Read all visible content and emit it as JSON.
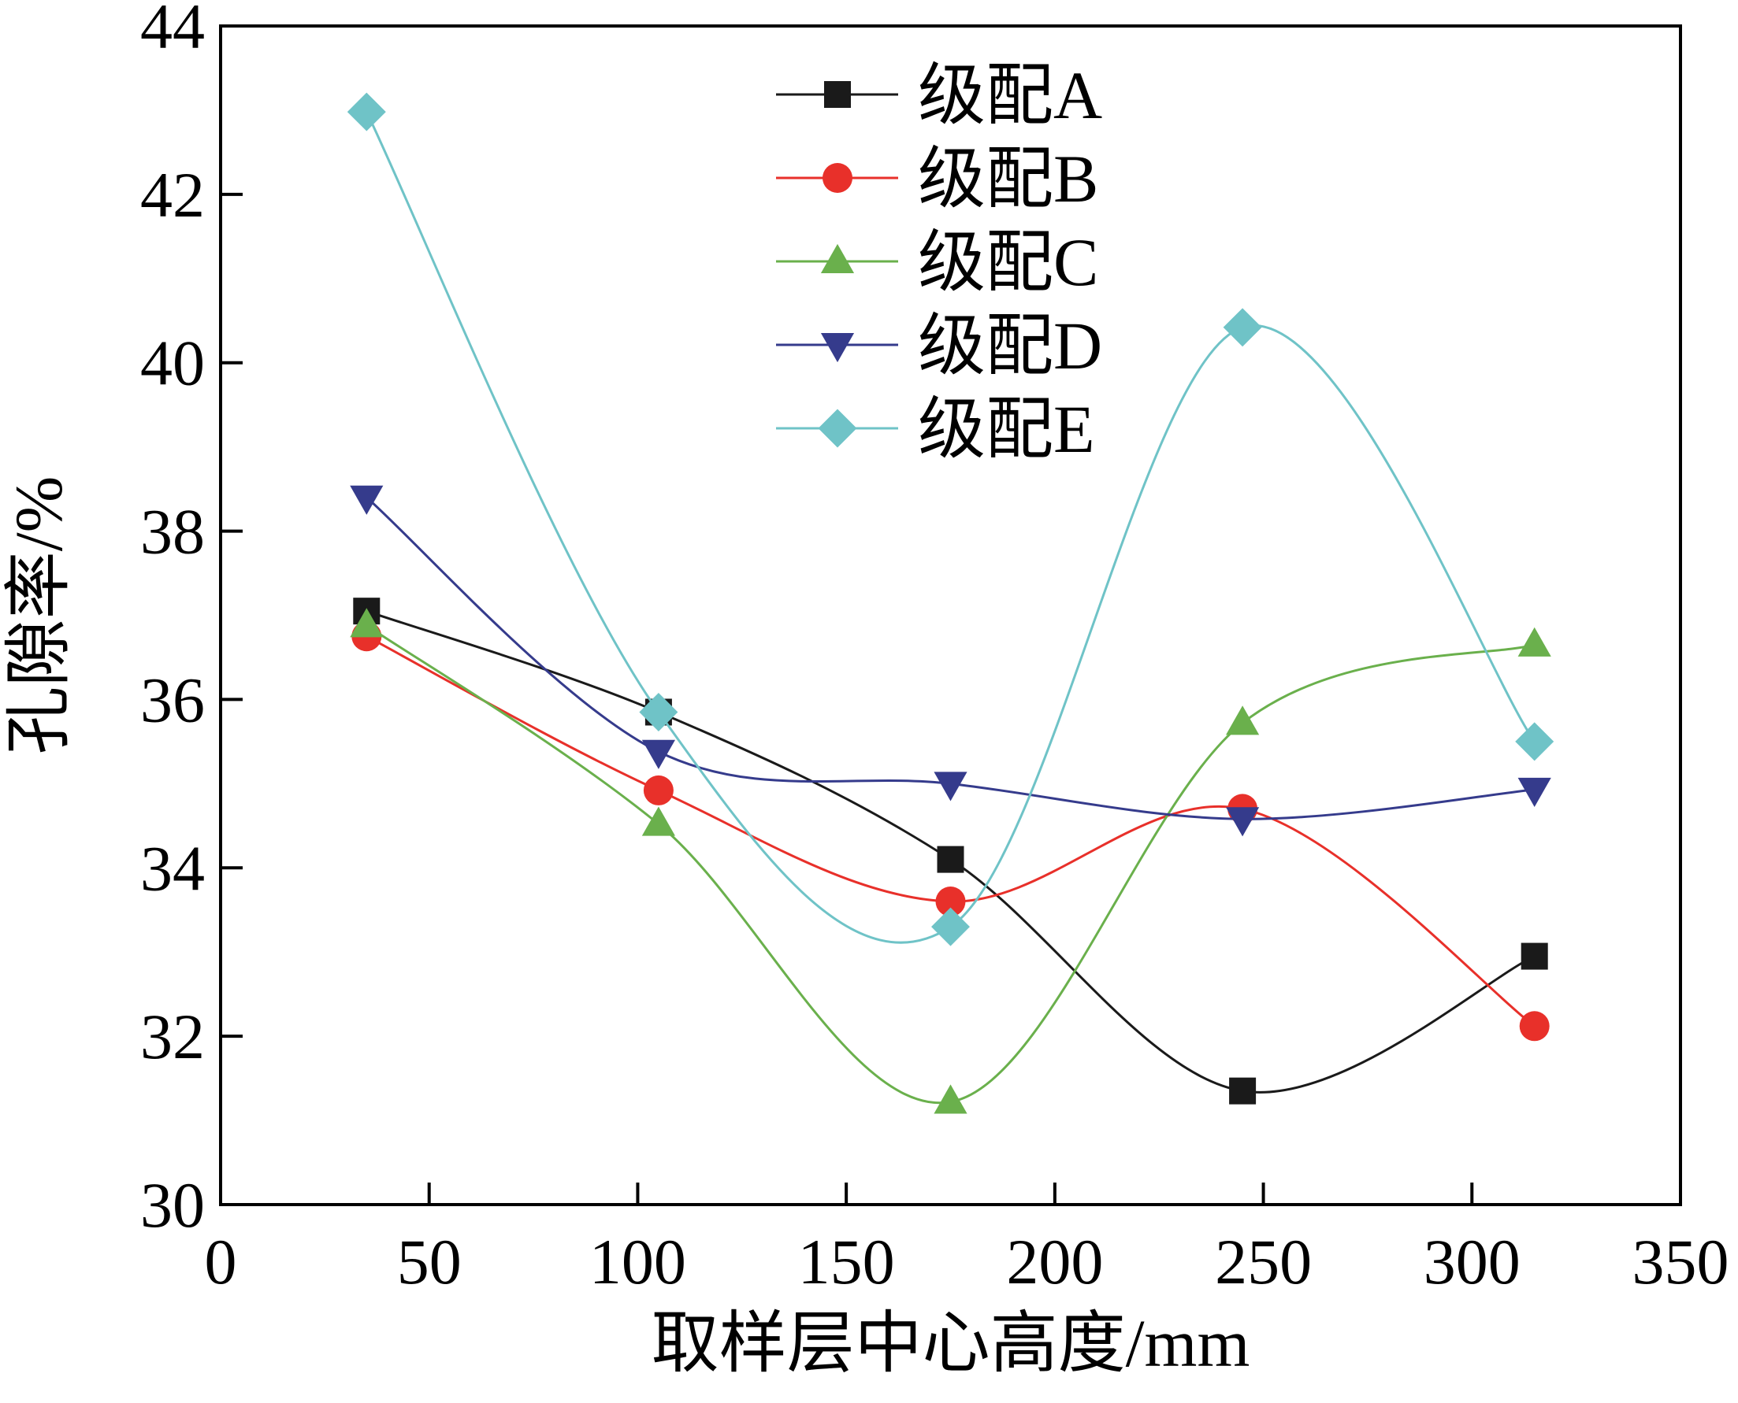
{
  "chart_data": {
    "type": "line",
    "title": "",
    "xlabel": "取样层中心高度/mm",
    "ylabel": "孔隙率/%",
    "xlim": [
      0,
      350
    ],
    "ylim": [
      30,
      44
    ],
    "xticks": [
      0,
      50,
      100,
      150,
      200,
      250,
      300,
      350
    ],
    "yticks": [
      30,
      32,
      34,
      36,
      38,
      40,
      42,
      44
    ],
    "grid": false,
    "legend_position": "top-center",
    "x": [
      35,
      105,
      175,
      245,
      315
    ],
    "series": [
      {
        "name": "级配A",
        "values": [
          37.05,
          35.85,
          34.1,
          31.35,
          32.95
        ],
        "color": "#1a1a1a",
        "marker": "square"
      },
      {
        "name": "级配B",
        "values": [
          36.75,
          34.92,
          33.6,
          34.7,
          32.12
        ],
        "color": "#e8302a",
        "marker": "circle"
      },
      {
        "name": "级配C",
        "values": [
          36.88,
          34.52,
          31.22,
          35.72,
          36.65
        ],
        "color": "#6ab04c",
        "marker": "triangle-up"
      },
      {
        "name": "级配D",
        "values": [
          38.4,
          35.38,
          35.0,
          34.58,
          34.93
        ],
        "color": "#353b8c",
        "marker": "triangle-down"
      },
      {
        "name": "级配E",
        "values": [
          42.98,
          35.85,
          33.3,
          40.42,
          35.5
        ],
        "color": "#6fc3c7",
        "marker": "diamond"
      }
    ]
  }
}
